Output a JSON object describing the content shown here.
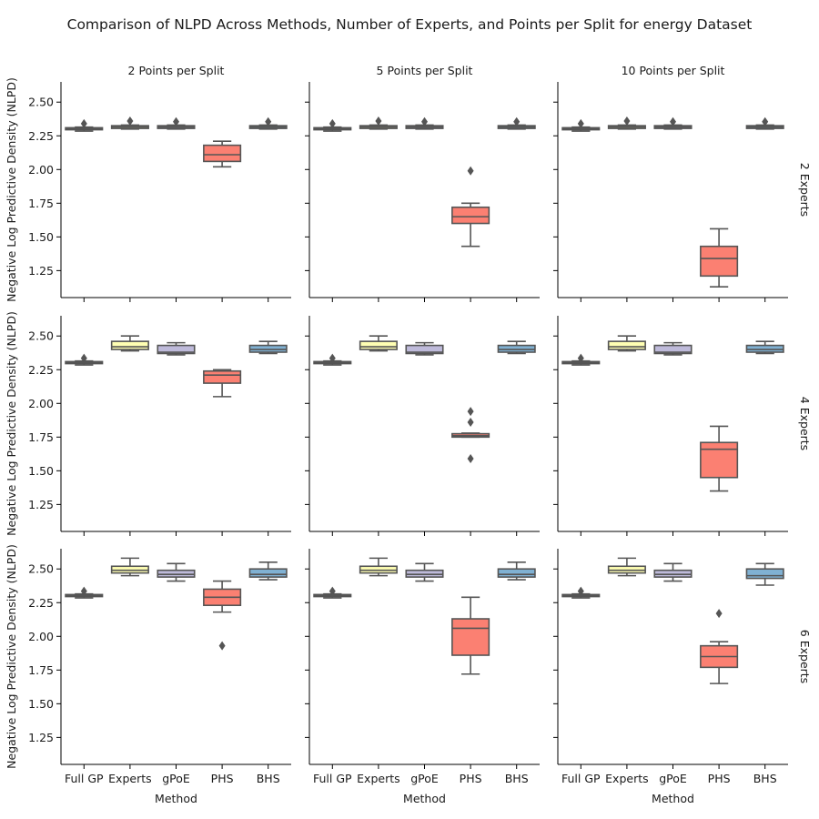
{
  "title": "Comparison of NLPD Across Methods, Number of Experts, and Points per Split for energy Dataset",
  "colors": {
    "Full GP": "#8dd3c7",
    "Experts": "#ffffb3",
    "gPoE": "#bebada",
    "PHS": "#fb8072",
    "BHS": "#80b1d3",
    "line": "#555555"
  },
  "chart_data": {
    "type": "boxplot",
    "title": "Comparison of NLPD Across Methods, Number of Experts, and Points per Split for energy Dataset",
    "xlabel": "Method",
    "ylabel": "Negative Log Predictive Density (NLPD)",
    "categories": [
      "Full GP",
      "Experts",
      "gPoE",
      "PHS",
      "BHS"
    ],
    "col_titles": [
      "2 Points per Split",
      "5 Points per Split",
      "10 Points per Split"
    ],
    "row_titles": [
      "2 Experts",
      "4 Experts",
      "6 Experts"
    ],
    "ylim": [
      1.05,
      2.65
    ],
    "yticks": [
      1.25,
      1.5,
      1.75,
      2.0,
      2.25,
      2.5
    ],
    "yticklabels": [
      "1.25",
      "1.50",
      "1.75",
      "2.00",
      "2.25",
      "2.50"
    ],
    "panels": [
      {
        "row": "2 Experts",
        "col": "2 Points per Split",
        "boxes": [
          {
            "q1": 2.295,
            "median": 2.3,
            "q3": 2.31,
            "wlo": 2.285,
            "whi": 2.315,
            "outliers": [
              2.34
            ]
          },
          {
            "q1": 2.305,
            "median": 2.315,
            "q3": 2.325,
            "wlo": 2.3,
            "whi": 2.33,
            "outliers": [
              2.36
            ]
          },
          {
            "q1": 2.305,
            "median": 2.315,
            "q3": 2.325,
            "wlo": 2.3,
            "whi": 2.33,
            "outliers": [
              2.355
            ]
          },
          {
            "q1": 2.06,
            "median": 2.11,
            "q3": 2.18,
            "wlo": 2.02,
            "whi": 2.21,
            "outliers": []
          },
          {
            "q1": 2.305,
            "median": 2.315,
            "q3": 2.325,
            "wlo": 2.3,
            "whi": 2.33,
            "outliers": [
              2.355
            ]
          }
        ]
      },
      {
        "row": "2 Experts",
        "col": "5 Points per Split",
        "boxes": [
          {
            "q1": 2.295,
            "median": 2.3,
            "q3": 2.31,
            "wlo": 2.285,
            "whi": 2.315,
            "outliers": [
              2.34
            ]
          },
          {
            "q1": 2.305,
            "median": 2.315,
            "q3": 2.325,
            "wlo": 2.3,
            "whi": 2.33,
            "outliers": [
              2.36
            ]
          },
          {
            "q1": 2.305,
            "median": 2.315,
            "q3": 2.325,
            "wlo": 2.3,
            "whi": 2.33,
            "outliers": [
              2.355
            ]
          },
          {
            "q1": 1.6,
            "median": 1.65,
            "q3": 1.72,
            "wlo": 1.43,
            "whi": 1.75,
            "outliers": [
              1.99
            ]
          },
          {
            "q1": 2.305,
            "median": 2.315,
            "q3": 2.325,
            "wlo": 2.3,
            "whi": 2.33,
            "outliers": [
              2.355
            ]
          }
        ]
      },
      {
        "row": "2 Experts",
        "col": "10 Points per Split",
        "boxes": [
          {
            "q1": 2.295,
            "median": 2.3,
            "q3": 2.31,
            "wlo": 2.285,
            "whi": 2.315,
            "outliers": [
              2.34
            ]
          },
          {
            "q1": 2.305,
            "median": 2.315,
            "q3": 2.325,
            "wlo": 2.3,
            "whi": 2.33,
            "outliers": [
              2.36
            ]
          },
          {
            "q1": 2.305,
            "median": 2.315,
            "q3": 2.325,
            "wlo": 2.3,
            "whi": 2.33,
            "outliers": [
              2.355
            ]
          },
          {
            "q1": 1.21,
            "median": 1.34,
            "q3": 1.43,
            "wlo": 1.13,
            "whi": 1.56,
            "outliers": []
          },
          {
            "q1": 2.305,
            "median": 2.315,
            "q3": 2.325,
            "wlo": 2.3,
            "whi": 2.33,
            "outliers": [
              2.355
            ]
          }
        ]
      },
      {
        "row": "4 Experts",
        "col": "2 Points per Split",
        "boxes": [
          {
            "q1": 2.295,
            "median": 2.3,
            "q3": 2.31,
            "wlo": 2.285,
            "whi": 2.315,
            "outliers": [
              2.335
            ]
          },
          {
            "q1": 2.4,
            "median": 2.42,
            "q3": 2.46,
            "wlo": 2.39,
            "whi": 2.5,
            "outliers": []
          },
          {
            "q1": 2.37,
            "median": 2.38,
            "q3": 2.43,
            "wlo": 2.36,
            "whi": 2.45,
            "outliers": []
          },
          {
            "q1": 2.15,
            "median": 2.21,
            "q3": 2.24,
            "wlo": 2.05,
            "whi": 2.25,
            "outliers": []
          },
          {
            "q1": 2.38,
            "median": 2.4,
            "q3": 2.43,
            "wlo": 2.37,
            "whi": 2.46,
            "outliers": []
          }
        ]
      },
      {
        "row": "4 Experts",
        "col": "5 Points per Split",
        "boxes": [
          {
            "q1": 2.295,
            "median": 2.3,
            "q3": 2.31,
            "wlo": 2.285,
            "whi": 2.315,
            "outliers": [
              2.335
            ]
          },
          {
            "q1": 2.4,
            "median": 2.42,
            "q3": 2.46,
            "wlo": 2.39,
            "whi": 2.5,
            "outliers": []
          },
          {
            "q1": 2.37,
            "median": 2.38,
            "q3": 2.43,
            "wlo": 2.36,
            "whi": 2.45,
            "outliers": []
          },
          {
            "q1": 1.75,
            "median": 1.76,
            "q3": 1.775,
            "wlo": 1.75,
            "whi": 1.78,
            "outliers": [
              1.94,
              1.86,
              1.59
            ]
          },
          {
            "q1": 2.38,
            "median": 2.4,
            "q3": 2.43,
            "wlo": 2.37,
            "whi": 2.46,
            "outliers": []
          }
        ]
      },
      {
        "row": "4 Experts",
        "col": "10 Points per Split",
        "boxes": [
          {
            "q1": 2.295,
            "median": 2.3,
            "q3": 2.31,
            "wlo": 2.285,
            "whi": 2.315,
            "outliers": [
              2.335
            ]
          },
          {
            "q1": 2.4,
            "median": 2.42,
            "q3": 2.46,
            "wlo": 2.39,
            "whi": 2.5,
            "outliers": []
          },
          {
            "q1": 2.37,
            "median": 2.38,
            "q3": 2.43,
            "wlo": 2.36,
            "whi": 2.45,
            "outliers": []
          },
          {
            "q1": 1.45,
            "median": 1.66,
            "q3": 1.71,
            "wlo": 1.35,
            "whi": 1.83,
            "outliers": []
          },
          {
            "q1": 2.38,
            "median": 2.4,
            "q3": 2.43,
            "wlo": 2.37,
            "whi": 2.46,
            "outliers": []
          }
        ]
      },
      {
        "row": "6 Experts",
        "col": "2 Points per Split",
        "boxes": [
          {
            "q1": 2.295,
            "median": 2.3,
            "q3": 2.31,
            "wlo": 2.285,
            "whi": 2.315,
            "outliers": [
              2.335
            ]
          },
          {
            "q1": 2.47,
            "median": 2.49,
            "q3": 2.52,
            "wlo": 2.45,
            "whi": 2.58,
            "outliers": []
          },
          {
            "q1": 2.44,
            "median": 2.46,
            "q3": 2.49,
            "wlo": 2.41,
            "whi": 2.54,
            "outliers": []
          },
          {
            "q1": 2.23,
            "median": 2.29,
            "q3": 2.35,
            "wlo": 2.18,
            "whi": 2.41,
            "outliers": [
              1.93
            ]
          },
          {
            "q1": 2.44,
            "median": 2.46,
            "q3": 2.5,
            "wlo": 2.42,
            "whi": 2.55,
            "outliers": []
          }
        ]
      },
      {
        "row": "6 Experts",
        "col": "5 Points per Split",
        "boxes": [
          {
            "q1": 2.295,
            "median": 2.3,
            "q3": 2.31,
            "wlo": 2.285,
            "whi": 2.315,
            "outliers": [
              2.335
            ]
          },
          {
            "q1": 2.47,
            "median": 2.49,
            "q3": 2.52,
            "wlo": 2.45,
            "whi": 2.58,
            "outliers": []
          },
          {
            "q1": 2.44,
            "median": 2.46,
            "q3": 2.49,
            "wlo": 2.41,
            "whi": 2.54,
            "outliers": []
          },
          {
            "q1": 1.86,
            "median": 2.06,
            "q3": 2.13,
            "wlo": 1.72,
            "whi": 2.29,
            "outliers": []
          },
          {
            "q1": 2.44,
            "median": 2.46,
            "q3": 2.5,
            "wlo": 2.42,
            "whi": 2.55,
            "outliers": []
          }
        ]
      },
      {
        "row": "6 Experts",
        "col": "10 Points per Split",
        "boxes": [
          {
            "q1": 2.295,
            "median": 2.3,
            "q3": 2.31,
            "wlo": 2.285,
            "whi": 2.315,
            "outliers": [
              2.335
            ]
          },
          {
            "q1": 2.47,
            "median": 2.49,
            "q3": 2.52,
            "wlo": 2.45,
            "whi": 2.58,
            "outliers": []
          },
          {
            "q1": 2.44,
            "median": 2.46,
            "q3": 2.49,
            "wlo": 2.41,
            "whi": 2.54,
            "outliers": []
          },
          {
            "q1": 1.77,
            "median": 1.85,
            "q3": 1.93,
            "wlo": 1.65,
            "whi": 1.96,
            "outliers": [
              2.17
            ]
          },
          {
            "q1": 2.43,
            "median": 2.45,
            "q3": 2.5,
            "wlo": 2.38,
            "whi": 2.54,
            "outliers": []
          }
        ]
      }
    ]
  }
}
